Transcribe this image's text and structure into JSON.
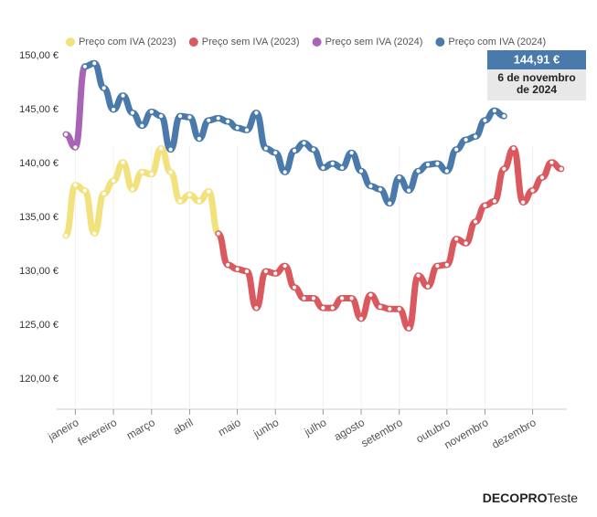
{
  "chart_data": {
    "type": "line",
    "categories": [
      null,
      "janeiro",
      null,
      null,
      null,
      "fevereiro",
      null,
      null,
      null,
      "março",
      null,
      null,
      null,
      "abril",
      null,
      null,
      null,
      null,
      "maio",
      null,
      null,
      null,
      "junho",
      null,
      null,
      null,
      null,
      "julho",
      null,
      null,
      null,
      "agosto",
      null,
      null,
      null,
      "setembro",
      null,
      null,
      null,
      null,
      "outubro",
      null,
      null,
      null,
      "novembro",
      null,
      null,
      null,
      null,
      "dezembro",
      null,
      null,
      null
    ],
    "series": [
      {
        "name": "Preço com IVA (2023)",
        "color": "#f2e27d",
        "values": [
          133.3,
          138,
          137.5,
          133.5,
          137.2,
          138.4,
          140.1,
          137.6,
          139.2,
          139,
          141.4,
          139.2,
          136.5,
          137.1,
          136.5,
          137.4,
          133.5,
          null,
          null,
          null,
          null,
          null,
          null,
          null,
          null,
          null,
          null,
          null,
          null,
          null,
          null,
          null,
          null,
          null,
          null,
          null,
          null,
          null,
          null,
          null,
          null,
          null,
          null,
          null,
          null,
          null,
          null,
          null,
          null,
          null,
          null,
          null,
          null
        ]
      },
      {
        "name": "Preço sem IVA (2023)",
        "color": "#d9595f",
        "values": [
          null,
          null,
          null,
          null,
          null,
          null,
          null,
          null,
          null,
          null,
          null,
          null,
          null,
          null,
          null,
          null,
          133.5,
          130.6,
          130.2,
          130,
          126.6,
          130,
          129.8,
          130.5,
          128.5,
          127.5,
          127.5,
          126.6,
          126.6,
          127.5,
          127.5,
          125.6,
          127.8,
          126.7,
          126.5,
          126.5,
          124.7,
          129.6,
          128.6,
          130.5,
          130.6,
          133,
          132.6,
          134.6,
          136.1,
          136.5,
          139.5,
          141.4,
          136.4,
          137.5,
          138.7,
          140.1,
          139.5
        ]
      },
      {
        "name": "Preço sem IVA (2024)",
        "color": "#a865b5",
        "values": [
          142.7,
          141.5,
          149,
          null,
          null,
          null,
          null,
          null,
          null,
          null,
          null,
          null,
          null,
          null,
          null,
          null,
          null,
          null,
          null,
          null,
          null,
          null,
          null,
          null,
          null,
          null,
          null,
          null,
          null,
          null,
          null,
          null,
          null,
          null,
          null,
          null,
          null,
          null,
          null,
          null,
          null,
          null,
          null,
          null,
          null,
          null,
          null,
          null,
          null,
          null,
          null,
          null,
          null
        ]
      },
      {
        "name": "Preço com IVA (2024)",
        "color": "#4a7aab",
        "values": [
          null,
          null,
          149,
          149.3,
          147,
          145,
          146.3,
          144.7,
          143.5,
          144.8,
          144.4,
          141.3,
          144.4,
          144.3,
          142.3,
          144,
          144.2,
          143.9,
          143.3,
          143.1,
          144.7,
          141.4,
          141,
          139.2,
          141.2,
          141.9,
          141.3,
          139.6,
          140,
          139.6,
          141,
          139.3,
          137.9,
          137.6,
          136.3,
          138.7,
          137.5,
          139.3,
          139.9,
          140,
          139.3,
          141.3,
          142.2,
          142.5,
          144,
          144.9,
          144.4,
          null,
          null,
          null,
          null,
          null,
          null
        ]
      }
    ],
    "ylim": [
      117.2,
      151
    ],
    "yticks": [
      {
        "value": 120,
        "label": "120,00 €"
      },
      {
        "value": 125,
        "label": "125,00 €"
      },
      {
        "value": 130,
        "label": "130,00 €"
      },
      {
        "value": 135,
        "label": "135,00 €"
      },
      {
        "value": 140,
        "label": "140,00 €"
      },
      {
        "value": 145,
        "label": "145,00 €"
      },
      {
        "value": 150,
        "label": "150,00 €"
      }
    ],
    "grid": false,
    "legend": "top",
    "annotation": {
      "value_label": "144,91 €",
      "date_lines": [
        "6 de novembro",
        "de 2024"
      ]
    },
    "brand": [
      "DECO",
      "PRO",
      "Teste"
    ]
  }
}
